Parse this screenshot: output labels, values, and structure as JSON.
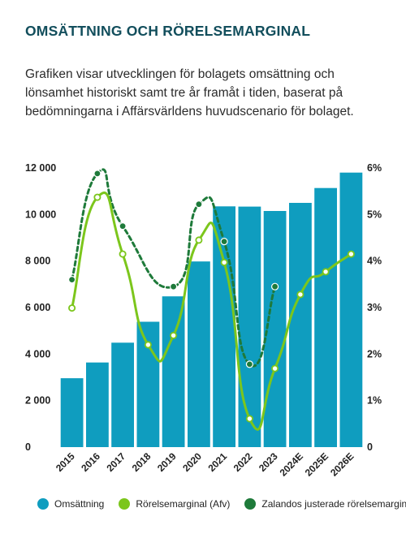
{
  "header": {
    "title": "OMSÄTTNING OCH RÖRELSEMARGINAL",
    "description": "Grafiken visar utvecklingen för bolagets omsättning och lönsamhet historiskt samt tre år framåt i tiden, baserat på bedömningarna i Affärsvärldens huvudscenario för bolaget."
  },
  "colors": {
    "bars": "#0f9dbf",
    "margin_line": "#7cc61c",
    "adjusted_line": "#1e7a3a",
    "title": "#124e5c"
  },
  "legend": {
    "items": [
      {
        "label": "Omsättning",
        "color": "#0f9dbf"
      },
      {
        "label": "Rörelsemarginal (Afv)",
        "color": "#7cc61c"
      },
      {
        "label": "Zalandos justerade rörelsemarginal",
        "color": "#1e7a3a"
      }
    ],
    "placement": "bottom"
  },
  "chart_data": {
    "type": "bar",
    "categories": [
      "2015",
      "2016",
      "2017",
      "2018",
      "2019",
      "2020",
      "2021",
      "2022",
      "2023",
      "2024E",
      "2025E",
      "2026E"
    ],
    "series": [
      {
        "name": "Omsättning",
        "type": "bar",
        "axis": "left",
        "values": [
          2960,
          3640,
          4490,
          5390,
          6480,
          7980,
          10350,
          10340,
          10150,
          10500,
          11140,
          11800
        ]
      },
      {
        "name": "Rörelsemarginal (Afv)",
        "type": "line",
        "axis": "right",
        "dashed": false,
        "values": [
          2.99,
          5.37,
          4.15,
          2.2,
          2.4,
          4.45,
          3.97,
          0.61,
          1.69,
          3.28,
          3.77,
          4.15
        ]
      },
      {
        "name": "Zalandos justerade rörelsemarginal",
        "type": "line",
        "axis": "right",
        "dashed": true,
        "values": [
          3.6,
          5.88,
          4.75,
          null,
          3.45,
          5.22,
          4.42,
          1.78,
          3.45,
          null,
          null,
          null
        ]
      }
    ],
    "y_left": {
      "min": 0,
      "max": 12000,
      "ticks": [
        0,
        2000,
        4000,
        6000,
        8000,
        10000,
        12000
      ],
      "tick_labels": [
        "0",
        "2 000",
        "4 000",
        "6 000",
        "8 000",
        "10 000",
        "12 000"
      ]
    },
    "y_right": {
      "min": 0,
      "max": 6,
      "ticks": [
        0,
        1,
        2,
        3,
        4,
        5,
        6
      ],
      "tick_labels": [
        "0",
        "1%",
        "2%",
        "3%",
        "4%",
        "5%",
        "6%"
      ]
    },
    "grid": false
  }
}
